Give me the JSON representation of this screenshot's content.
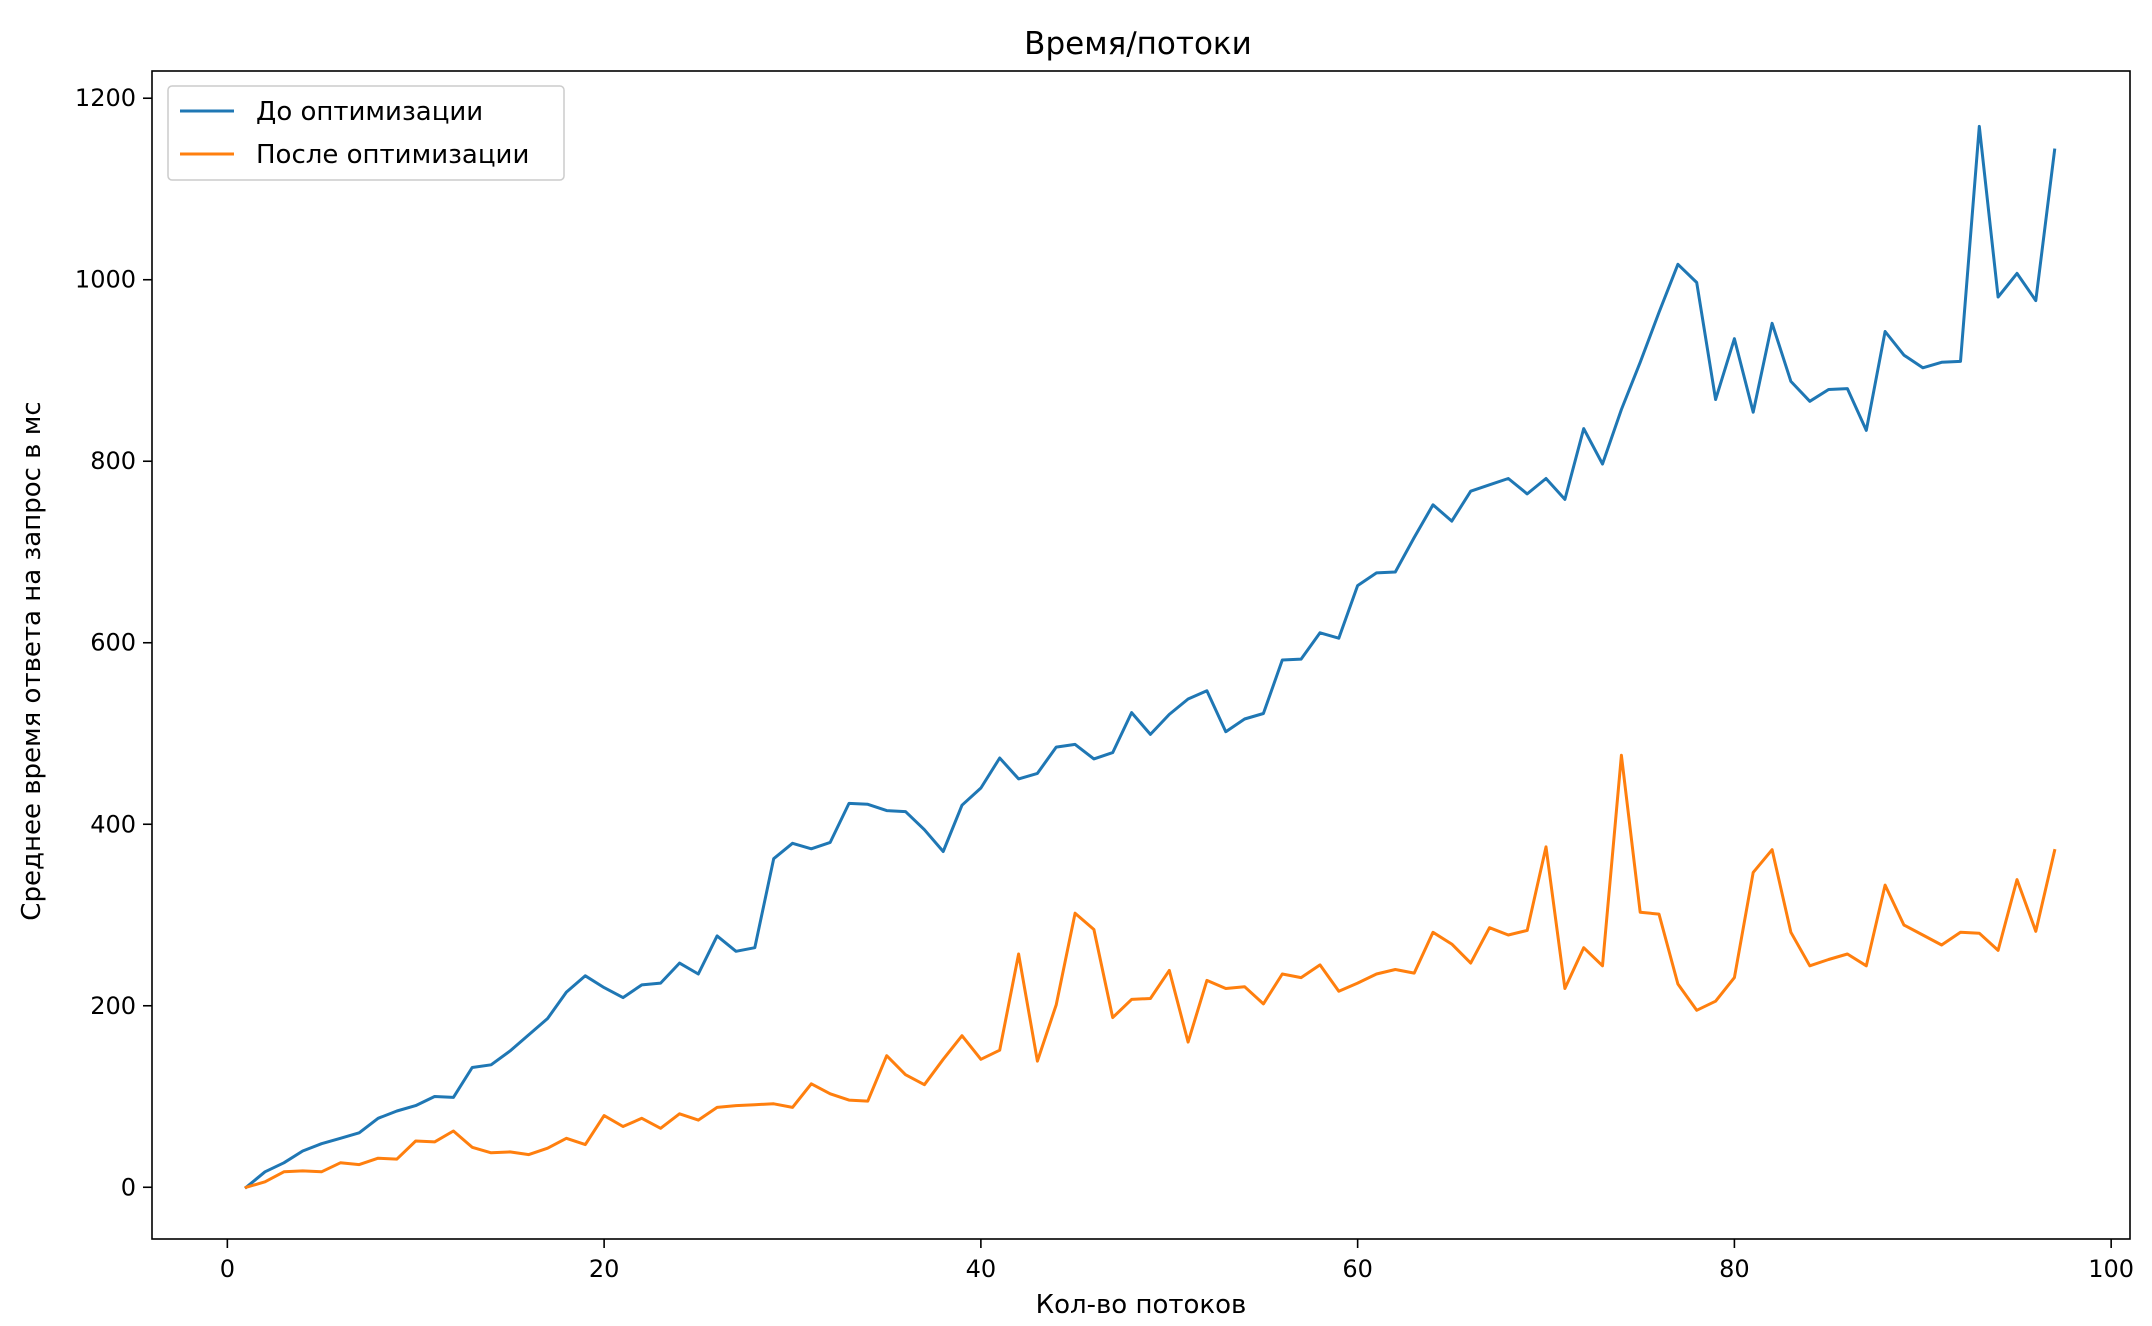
{
  "chart_data": {
    "type": "line",
    "title": "Время/потоки",
    "xlabel": "Кол-во потоков",
    "ylabel": "Среднее время ответа на запрос в мс",
    "xlim": [
      -4,
      101
    ],
    "ylim": [
      -57,
      1230
    ],
    "xticks": [
      0,
      20,
      40,
      60,
      80,
      100
    ],
    "yticks": [
      0,
      200,
      400,
      600,
      800,
      1000,
      1200
    ],
    "grid": false,
    "legend_position": "upper-left",
    "x": [
      1,
      2,
      3,
      4,
      5,
      6,
      7,
      8,
      9,
      10,
      11,
      12,
      13,
      14,
      15,
      16,
      17,
      18,
      19,
      20,
      21,
      22,
      23,
      24,
      25,
      26,
      27,
      28,
      29,
      30,
      31,
      32,
      33,
      34,
      35,
      36,
      37,
      38,
      39,
      40,
      41,
      42,
      43,
      44,
      45,
      46,
      47,
      48,
      49,
      50,
      51,
      52,
      53,
      54,
      55,
      56,
      57,
      58,
      59,
      60,
      61,
      62,
      63,
      64,
      65,
      66,
      67,
      68,
      69,
      70,
      71,
      72,
      73,
      74,
      75,
      76,
      77,
      78,
      79,
      80,
      81,
      82,
      83,
      84,
      85,
      86,
      87,
      88,
      89,
      90,
      91,
      92,
      93,
      94,
      95,
      96,
      97
    ],
    "series": [
      {
        "name": "До оптимизации",
        "color": "#1f77b4",
        "values": [
          0,
          17,
          27,
          40,
          48,
          54,
          60,
          76,
          84,
          90,
          100,
          99,
          132,
          135,
          150,
          168,
          186,
          215,
          233,
          220,
          209,
          223,
          225,
          247,
          235,
          277,
          260,
          264,
          362,
          379,
          373,
          380,
          423,
          422,
          415,
          414,
          394,
          370,
          421,
          440,
          473,
          450,
          456,
          485,
          488,
          472,
          479,
          523,
          499,
          521,
          538,
          547,
          502,
          516,
          522,
          581,
          582,
          611,
          605,
          663,
          677,
          678,
          716,
          752,
          734,
          767,
          774,
          781,
          764,
          781,
          758,
          836,
          797,
          857,
          909,
          964,
          1017,
          997,
          868,
          935,
          854,
          952,
          888,
          866,
          879,
          880,
          834,
          943,
          917,
          903,
          909,
          910,
          1169,
          981,
          1007,
          977,
          1143
        ]
      },
      {
        "name": "После оптимизации",
        "color": "#ff7f0e",
        "values": [
          0,
          6,
          17,
          18,
          17,
          27,
          25,
          32,
          31,
          51,
          50,
          62,
          44,
          38,
          39,
          36,
          43,
          54,
          47,
          79,
          67,
          76,
          65,
          81,
          74,
          88,
          90,
          91,
          92,
          88,
          114,
          103,
          96,
          95,
          145,
          124,
          113,
          141,
          167,
          141,
          151,
          257,
          139,
          201,
          302,
          284,
          187,
          207,
          208,
          239,
          160,
          228,
          219,
          221,
          202,
          235,
          231,
          245,
          216,
          225,
          235,
          240,
          236,
          281,
          268,
          247,
          286,
          278,
          283,
          375,
          219,
          264,
          244,
          476,
          303,
          301,
          224,
          195,
          205,
          231,
          347,
          372,
          281,
          244,
          251,
          257,
          244,
          333,
          289,
          278,
          267,
          281,
          280,
          261,
          339,
          282,
          371
        ]
      }
    ]
  }
}
